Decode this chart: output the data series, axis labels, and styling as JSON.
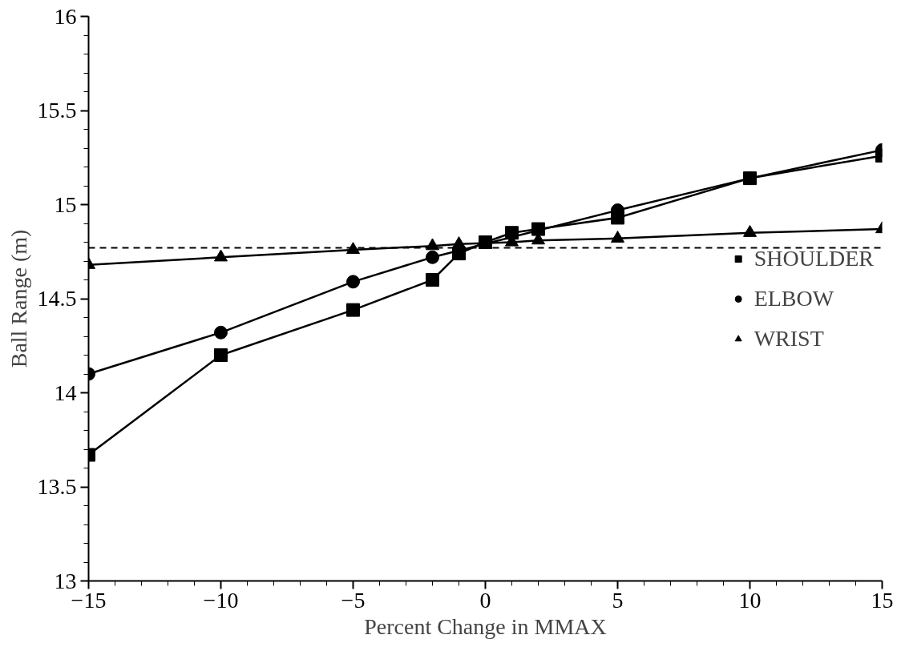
{
  "chart_data": {
    "type": "line",
    "xlabel": "Percent Change in MMAX",
    "ylabel": "Ball Range (m)",
    "x": [
      -15,
      -10,
      -5,
      -2,
      -1,
      0,
      1,
      2,
      5,
      10,
      15
    ],
    "series": [
      {
        "name": "SHOULDER",
        "color": "#000000",
        "marker": "square",
        "values": [
          13.67,
          14.2,
          14.44,
          14.6,
          14.74,
          14.8,
          14.85,
          14.87,
          14.93,
          15.14,
          15.26
        ]
      },
      {
        "name": "ELBOW",
        "color": "#000000",
        "marker": "circle",
        "x": [
          -15,
          -10,
          -5,
          -2,
          5,
          10,
          15
        ],
        "values": [
          14.1,
          14.32,
          14.59,
          14.72,
          14.97,
          15.14,
          15.29
        ]
      },
      {
        "name": "WRIST",
        "color": "#000000",
        "marker": "triangle",
        "x": [
          -15,
          -10,
          -5,
          -2,
          -1,
          1,
          2,
          5,
          10,
          15
        ],
        "values": [
          14.68,
          14.72,
          14.76,
          14.78,
          14.79,
          14.8,
          14.81,
          14.82,
          14.85,
          14.87
        ]
      }
    ],
    "ref_lines": [
      {
        "axis": "y",
        "value": 14.77,
        "label": null,
        "line_style": "dashed",
        "color": "#000000"
      }
    ],
    "xlim": [
      -15,
      15
    ],
    "xticks": [
      -15,
      -10,
      -5,
      0,
      5,
      10,
      15
    ],
    "ylim": [
      13,
      16
    ],
    "yticks": [
      13,
      13.5,
      14,
      14.5,
      15,
      15.5,
      16
    ],
    "grid": false,
    "legend": "right",
    "line_style": "solid"
  }
}
